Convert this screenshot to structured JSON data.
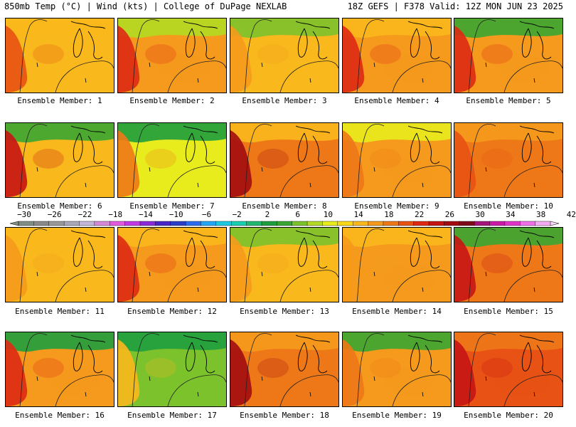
{
  "header": {
    "title_left": "850mb Temp (°C) | Wind (kts) | College of DuPage NEXLAB",
    "title_right": "18Z GEFS | F378 Valid: 12Z MON JUN 23 2025"
  },
  "colorbar": {
    "labels": [
      "−30",
      "−26",
      "−22",
      "−18",
      "−14",
      "−10",
      "−6",
      "−2",
      "2",
      "6",
      "10",
      "14",
      "18",
      "22",
      "26",
      "30",
      "34",
      "38",
      "42"
    ],
    "colors": [
      "#7f8f85",
      "#8a8a8a",
      "#999999",
      "#a8a8b8",
      "#c3b6d8",
      "#d58ad8",
      "#e25ae0",
      "#c23ae6",
      "#8a2ad8",
      "#4a26c8",
      "#2a3ec8",
      "#2a6cf0",
      "#23a6f4",
      "#1ec8e0",
      "#18d0b0",
      "#22b870",
      "#1f9e3e",
      "#3aa632",
      "#7cc22c",
      "#b4da24",
      "#e8ec1c",
      "#fbd91a",
      "#f9b81c",
      "#f59a1c",
      "#ee7818",
      "#e85214",
      "#de2a14",
      "#c61414",
      "#a20c10",
      "#7e0a1a",
      "#a5147a",
      "#cb1aa8",
      "#e232c8",
      "#f070e8",
      "#f4aaf4"
    ]
  },
  "panels": [
    {
      "label": "Ensemble Member: 1"
    },
    {
      "label": "Ensemble Member: 2"
    },
    {
      "label": "Ensemble Member: 3"
    },
    {
      "label": "Ensemble Member: 4"
    },
    {
      "label": "Ensemble Member: 5"
    },
    {
      "label": "Ensemble Member: 6"
    },
    {
      "label": "Ensemble Member: 7"
    },
    {
      "label": "Ensemble Member: 8"
    },
    {
      "label": "Ensemble Member: 9"
    },
    {
      "label": "Ensemble Member: 10"
    },
    {
      "label": "Ensemble Member: 11"
    },
    {
      "label": "Ensemble Member: 12"
    },
    {
      "label": "Ensemble Member: 13"
    },
    {
      "label": "Ensemble Member: 14"
    },
    {
      "label": "Ensemble Member: 15"
    },
    {
      "label": "Ensemble Member: 16"
    },
    {
      "label": "Ensemble Member: 17"
    },
    {
      "label": "Ensemble Member: 18"
    },
    {
      "label": "Ensemble Member: 19"
    },
    {
      "label": "Ensemble Member: 20"
    }
  ]
}
